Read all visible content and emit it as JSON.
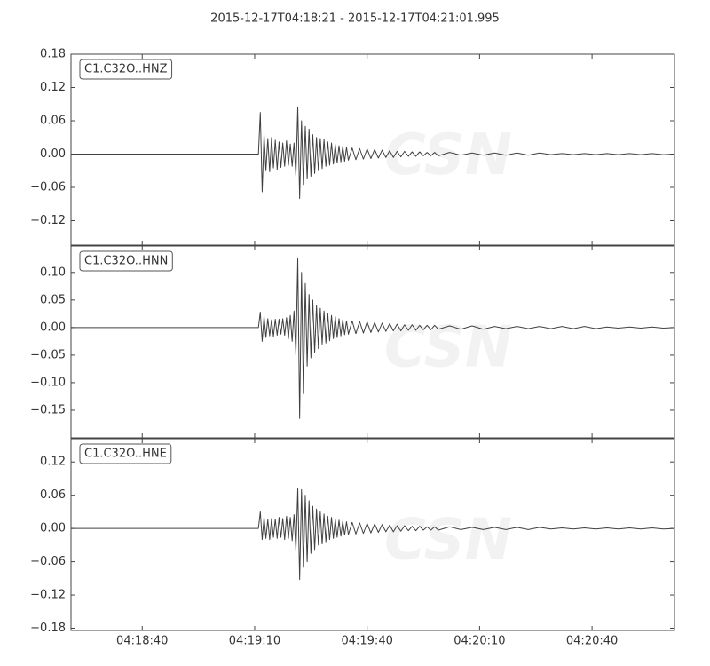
{
  "chart_data": {
    "type": "line",
    "title": "2015-12-17T04:18:21  -  2015-12-17T04:21:01.995",
    "watermark": "CSN",
    "color": "#404040",
    "xlim": [
      15501,
      15661.995
    ],
    "xticks": [
      {
        "value": 15520,
        "label": "04:18:40"
      },
      {
        "value": 15550,
        "label": "04:19:10"
      },
      {
        "value": 15580,
        "label": "04:19:40"
      },
      {
        "value": 15610,
        "label": "04:20:10"
      },
      {
        "value": 15640,
        "label": "04:20:40"
      }
    ],
    "x": [
      15501,
      15551,
      15551.5,
      15552,
      15552.5,
      15553,
      15553.5,
      15554,
      15554.5,
      15555,
      15555.5,
      15556,
      15556.5,
      15557,
      15557.5,
      15558,
      15558.5,
      15559,
      15559.5,
      15560,
      15560.5,
      15561,
      15561.5,
      15562,
      15562.5,
      15563,
      15563.5,
      15564,
      15564.5,
      15565,
      15565.5,
      15566,
      15566.5,
      15567,
      15567.5,
      15568,
      15568.5,
      15569,
      15569.5,
      15570,
      15570.5,
      15571,
      15571.5,
      15572,
      15572.5,
      15573,
      15573.5,
      15574,
      15574.5,
      15575,
      15576,
      15577,
      15578,
      15579,
      15580,
      15581,
      15582,
      15583,
      15584,
      15585,
      15586,
      15587,
      15588,
      15589,
      15590,
      15591,
      15592,
      15593,
      15594,
      15595,
      15596,
      15597,
      15598,
      15599,
      15602,
      15605,
      15608,
      15611,
      15614,
      15617,
      15620,
      15623,
      15626,
      15629,
      15632,
      15635,
      15638,
      15641,
      15644,
      15647,
      15650,
      15653,
      15656,
      15659,
      15661.995
    ],
    "panels": [
      {
        "name": "C1.C32O..HNZ",
        "ylim": [
          -0.164,
          0.18
        ],
        "yticks": [
          {
            "value": 0.18,
            "label": "0.18"
          },
          {
            "value": 0.12,
            "label": "0.12"
          },
          {
            "value": 0.06,
            "label": "0.06"
          },
          {
            "value": 0,
            "label": "0.00"
          },
          {
            "value": -0.06,
            "label": "−0.06"
          },
          {
            "value": -0.12,
            "label": "−0.12"
          }
        ],
        "values": [
          0,
          0,
          0.075,
          -0.068,
          0.035,
          -0.03,
          0.028,
          -0.032,
          0.03,
          -0.025,
          0.025,
          -0.028,
          0.022,
          -0.024,
          0.02,
          -0.022,
          0.024,
          -0.02,
          0.018,
          -0.022,
          0.02,
          -0.04,
          0.085,
          -0.08,
          0.06,
          -0.055,
          0.05,
          -0.045,
          0.045,
          -0.04,
          0.035,
          -0.035,
          0.03,
          -0.03,
          0.028,
          -0.026,
          0.026,
          -0.022,
          0.022,
          -0.02,
          0.02,
          -0.018,
          0.017,
          -0.016,
          0.015,
          -0.014,
          0.014,
          -0.013,
          0.012,
          -0.011,
          0.011,
          -0.01,
          0.01,
          -0.009,
          0.009,
          -0.008,
          0.008,
          -0.007,
          0.007,
          -0.006,
          0.006,
          -0.006,
          0.005,
          -0.005,
          0.005,
          -0.004,
          0.004,
          -0.004,
          0.004,
          -0.003,
          0.003,
          -0.003,
          0.003,
          -0.003,
          0.003,
          -0.002,
          0.002,
          -0.002,
          0.002,
          -0.002,
          0.002,
          -0.002,
          0.002,
          -0.001,
          0.001,
          -0.001,
          0.001,
          -0.001,
          0.001,
          -0.001,
          0.001,
          -0.001,
          0.001,
          -0.001,
          0
        ]
      },
      {
        "name": "C1.C32O..HNN",
        "ylim": [
          -0.2,
          0.148
        ],
        "yticks": [
          {
            "value": 0.1,
            "label": "0.10"
          },
          {
            "value": 0.05,
            "label": "0.05"
          },
          {
            "value": 0,
            "label": "0.00"
          },
          {
            "value": -0.05,
            "label": "−0.05"
          },
          {
            "value": -0.1,
            "label": "−0.10"
          },
          {
            "value": -0.15,
            "label": "−0.15"
          }
        ],
        "values": [
          0,
          0,
          0.028,
          -0.025,
          0.02,
          -0.018,
          0.016,
          -0.015,
          0.014,
          -0.016,
          0.015,
          -0.014,
          0.015,
          -0.012,
          0.016,
          -0.014,
          0.018,
          -0.02,
          0.022,
          -0.025,
          0.03,
          -0.05,
          0.125,
          -0.165,
          0.1,
          -0.12,
          0.08,
          -0.07,
          0.06,
          -0.055,
          0.05,
          -0.045,
          0.04,
          -0.038,
          0.035,
          -0.03,
          0.03,
          -0.028,
          0.026,
          -0.024,
          0.022,
          -0.02,
          0.02,
          -0.018,
          0.016,
          -0.015,
          0.014,
          -0.013,
          0.012,
          -0.012,
          0.012,
          -0.011,
          0.011,
          -0.01,
          0.01,
          -0.009,
          0.009,
          -0.008,
          0.008,
          -0.007,
          0.007,
          -0.006,
          0.006,
          -0.006,
          0.005,
          -0.005,
          0.005,
          -0.005,
          0.004,
          -0.004,
          0.004,
          -0.004,
          0.004,
          -0.003,
          0.003,
          -0.003,
          0.003,
          -0.003,
          0.002,
          -0.002,
          0.002,
          -0.002,
          0.002,
          -0.002,
          0.002,
          -0.002,
          0.002,
          -0.002,
          0.001,
          -0.001,
          0.001,
          -0.001,
          0.001,
          -0.001,
          0
        ]
      },
      {
        "name": "C1.C32O..HNE",
        "ylim": [
          -0.184,
          0.162
        ],
        "yticks": [
          {
            "value": 0.12,
            "label": "0.12"
          },
          {
            "value": 0.06,
            "label": "0.06"
          },
          {
            "value": 0,
            "label": "0.00"
          },
          {
            "value": -0.06,
            "label": "−0.06"
          },
          {
            "value": -0.12,
            "label": "−0.12"
          },
          {
            "value": -0.18,
            "label": "−0.18"
          }
        ],
        "values": [
          0,
          0,
          0.03,
          -0.02,
          0.02,
          -0.018,
          0.016,
          -0.02,
          0.018,
          -0.016,
          0.017,
          -0.018,
          0.02,
          -0.016,
          0.018,
          -0.02,
          0.022,
          -0.018,
          0.02,
          -0.022,
          0.025,
          -0.04,
          0.072,
          -0.092,
          0.07,
          -0.07,
          0.06,
          -0.06,
          0.05,
          -0.045,
          0.04,
          -0.038,
          0.035,
          -0.03,
          0.03,
          -0.028,
          0.026,
          -0.024,
          0.022,
          -0.02,
          0.02,
          -0.018,
          0.017,
          -0.016,
          0.015,
          -0.014,
          0.013,
          -0.012,
          0.012,
          -0.011,
          0.011,
          -0.01,
          0.01,
          -0.009,
          0.009,
          -0.008,
          0.008,
          -0.007,
          0.007,
          -0.006,
          0.006,
          -0.006,
          0.005,
          -0.005,
          0.005,
          -0.004,
          0.004,
          -0.004,
          0.004,
          -0.003,
          0.003,
          -0.003,
          0.003,
          -0.003,
          0.003,
          -0.002,
          0.002,
          -0.002,
          0.002,
          -0.002,
          0.002,
          -0.002,
          0.002,
          -0.001,
          0.001,
          -0.001,
          0.001,
          -0.001,
          0.001,
          -0.001,
          0.001,
          -0.001,
          0.001,
          -0.001,
          0
        ]
      }
    ]
  }
}
